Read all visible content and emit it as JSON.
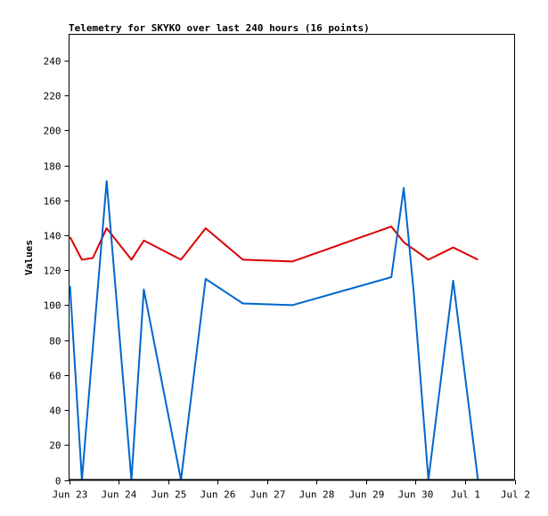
{
  "chart_data": {
    "type": "line",
    "title": "Telemetry for SKYKO over last 240 hours (16 points)",
    "xlabel": "",
    "ylabel": "Values",
    "x_ticks": [
      "Jun 23",
      "Jun 24",
      "Jun 25",
      "Jun 26",
      "Jun 27",
      "Jun 28",
      "Jun 29",
      "Jun 30",
      "Jul 1",
      "Jul 2"
    ],
    "xlim": [
      0,
      9
    ],
    "ylim": [
      0,
      255
    ],
    "y_ticks": [
      0,
      20,
      40,
      60,
      80,
      100,
      120,
      140,
      160,
      180,
      200,
      220,
      240
    ],
    "grid": false,
    "series": [
      {
        "color": "#dd0000",
        "points": [
          [
            0.02,
            139
          ],
          [
            0.26,
            126
          ],
          [
            0.48,
            127
          ],
          [
            0.76,
            144
          ],
          [
            1.26,
            126
          ],
          [
            1.51,
            137
          ],
          [
            2.26,
            126
          ],
          [
            2.76,
            144
          ],
          [
            3.51,
            126
          ],
          [
            4.51,
            125
          ],
          [
            6.51,
            145
          ],
          [
            6.76,
            136
          ],
          [
            6.96,
            132
          ],
          [
            7.26,
            126
          ],
          [
            7.76,
            133
          ],
          [
            8.26,
            126
          ]
        ]
      },
      {
        "color": "#0066cc",
        "points": [
          [
            0.02,
            111
          ],
          [
            0.26,
            0
          ],
          [
            0.76,
            171
          ],
          [
            1.26,
            0
          ],
          [
            1.51,
            109
          ],
          [
            2.26,
            0
          ],
          [
            2.76,
            115
          ],
          [
            3.51,
            101
          ],
          [
            4.51,
            100
          ],
          [
            6.51,
            116
          ],
          [
            6.76,
            167
          ],
          [
            6.96,
            108
          ],
          [
            7.26,
            0
          ],
          [
            7.76,
            114
          ],
          [
            8.26,
            0
          ]
        ]
      }
    ]
  }
}
